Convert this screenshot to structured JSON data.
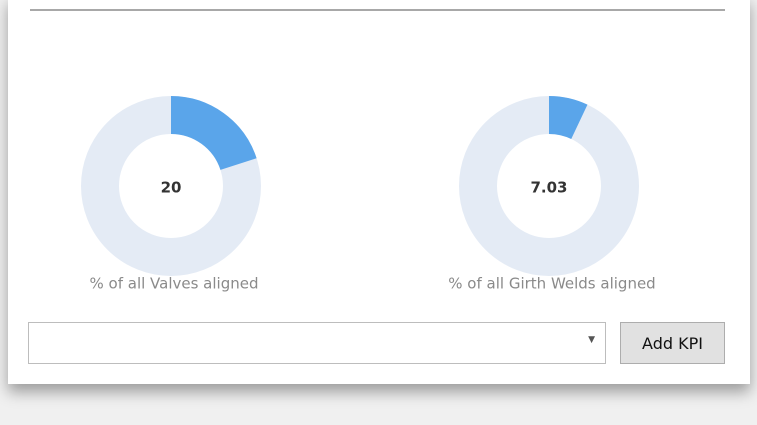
{
  "kpis": [
    {
      "value": 20,
      "label": "% of all Valves aligned"
    },
    {
      "value": 7.03,
      "label": "% of all Girth Welds aligned"
    }
  ],
  "button": "Add KPI"
}
